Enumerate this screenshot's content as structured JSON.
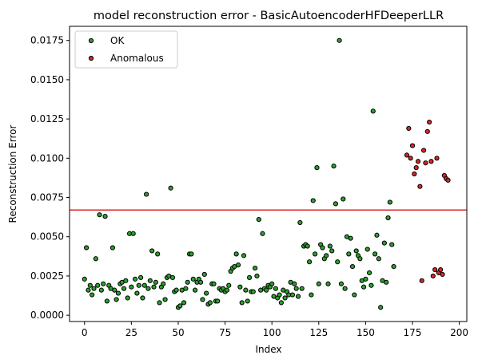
{
  "chart_data": {
    "type": "scatter",
    "title": "model reconstruction error - BasicAutoencoderHFDeeperLLR",
    "xlabel": "Index",
    "ylabel": "Reconstruction Error",
    "xlim": [
      -8,
      204
    ],
    "ylim": [
      -0.0004,
      0.0184
    ],
    "xticks": [
      0,
      25,
      50,
      75,
      100,
      125,
      150,
      175,
      200
    ],
    "yticks": [
      0.0,
      0.0025,
      0.005,
      0.0075,
      0.01,
      0.0125,
      0.015,
      0.0175
    ],
    "ytick_labels": [
      "0.0000",
      "0.0025",
      "0.0050",
      "0.0075",
      "0.0100",
      "0.0125",
      "0.0150",
      "0.0175"
    ],
    "grid": false,
    "legend_position": "top-left",
    "threshold": {
      "y": 0.0067,
      "color": "#d62728"
    },
    "series": [
      {
        "name": "OK",
        "color": "#2ca02c",
        "points": [
          [
            0,
            0.0023
          ],
          [
            1,
            0.0043
          ],
          [
            2,
            0.0016
          ],
          [
            3,
            0.0019
          ],
          [
            4,
            0.0013
          ],
          [
            5,
            0.0017
          ],
          [
            6,
            0.0036
          ],
          [
            7,
            0.0019
          ],
          [
            8,
            0.0064
          ],
          [
            9,
            0.0016
          ],
          [
            10,
            0.002
          ],
          [
            11,
            0.0063
          ],
          [
            12,
            0.0009
          ],
          [
            13,
            0.0019
          ],
          [
            14,
            0.0017
          ],
          [
            15,
            0.0043
          ],
          [
            16,
            0.0016
          ],
          [
            17,
            0.001
          ],
          [
            18,
            0.0014
          ],
          [
            19,
            0.002
          ],
          [
            20,
            0.0021
          ],
          [
            21,
            0.0017
          ],
          [
            22,
            0.0022
          ],
          [
            23,
            0.0011
          ],
          [
            24,
            0.0052
          ],
          [
            25,
            0.0018
          ],
          [
            26,
            0.0052
          ],
          [
            27,
            0.0023
          ],
          [
            28,
            0.0014
          ],
          [
            29,
            0.0019
          ],
          [
            30,
            0.0024
          ],
          [
            31,
            0.0011
          ],
          [
            32,
            0.0019
          ],
          [
            33,
            0.0077
          ],
          [
            34,
            0.0017
          ],
          [
            35,
            0.0022
          ],
          [
            36,
            0.0041
          ],
          [
            37,
            0.0018
          ],
          [
            38,
            0.0021
          ],
          [
            39,
            0.0039
          ],
          [
            40,
            0.0008
          ],
          [
            41,
            0.0018
          ],
          [
            42,
            0.002
          ],
          [
            43,
            0.001
          ],
          [
            44,
            0.0024
          ],
          [
            45,
            0.0025
          ],
          [
            46,
            0.0081
          ],
          [
            47,
            0.0024
          ],
          [
            48,
            0.0015
          ],
          [
            49,
            0.0016
          ],
          [
            50,
            0.0005
          ],
          [
            51,
            0.0006
          ],
          [
            52,
            0.0016
          ],
          [
            53,
            0.0008
          ],
          [
            54,
            0.0017
          ],
          [
            55,
            0.0021
          ],
          [
            56,
            0.0039
          ],
          [
            57,
            0.0039
          ],
          [
            58,
            0.0023
          ],
          [
            59,
            0.0016
          ],
          [
            60,
            0.0021
          ],
          [
            61,
            0.0023
          ],
          [
            62,
            0.0021
          ],
          [
            63,
            0.001
          ],
          [
            64,
            0.0026
          ],
          [
            65,
            0.0014
          ],
          [
            66,
            0.0007
          ],
          [
            67,
            0.0008
          ],
          [
            68,
            0.002
          ],
          [
            69,
            0.002
          ],
          [
            70,
            0.0009
          ],
          [
            71,
            0.0009
          ],
          [
            72,
            0.0017
          ],
          [
            73,
            0.0016
          ],
          [
            74,
            0.0017
          ],
          [
            75,
            0.0015
          ],
          [
            76,
            0.0016
          ],
          [
            77,
            0.0019
          ],
          [
            78,
            0.0028
          ],
          [
            79,
            0.003
          ],
          [
            80,
            0.0031
          ],
          [
            81,
            0.0039
          ],
          [
            82,
            0.0032
          ],
          [
            83,
            0.0018
          ],
          [
            84,
            0.0008
          ],
          [
            85,
            0.0038
          ],
          [
            86,
            0.0016
          ],
          [
            87,
            0.0009
          ],
          [
            88,
            0.0024
          ],
          [
            89,
            0.0015
          ],
          [
            90,
            0.0015
          ],
          [
            91,
            0.003
          ],
          [
            92,
            0.0025
          ],
          [
            93,
            0.0061
          ],
          [
            94,
            0.0016
          ],
          [
            95,
            0.0052
          ],
          [
            96,
            0.0017
          ],
          [
            97,
            0.0016
          ],
          [
            98,
            0.0019
          ],
          [
            99,
            0.0018
          ],
          [
            100,
            0.002
          ],
          [
            101,
            0.0012
          ],
          [
            102,
            0.0017
          ],
          [
            103,
            0.0011
          ],
          [
            104,
            0.0013
          ],
          [
            105,
            0.0008
          ],
          [
            106,
            0.0016
          ],
          [
            107,
            0.0011
          ],
          [
            108,
            0.0015
          ],
          [
            109,
            0.0013
          ],
          [
            110,
            0.0021
          ],
          [
            111,
            0.0013
          ],
          [
            112,
            0.002
          ],
          [
            113,
            0.0017
          ],
          [
            114,
            0.0012
          ],
          [
            115,
            0.0059
          ],
          [
            116,
            0.0017
          ],
          [
            117,
            0.0044
          ],
          [
            118,
            0.0045
          ],
          [
            119,
            0.0044
          ],
          [
            120,
            0.0034
          ],
          [
            121,
            0.0013
          ],
          [
            122,
            0.0073
          ],
          [
            123,
            0.0039
          ],
          [
            124,
            0.0094
          ],
          [
            125,
            0.002
          ],
          [
            126,
            0.0045
          ],
          [
            127,
            0.0043
          ],
          [
            128,
            0.0036
          ],
          [
            129,
            0.0038
          ],
          [
            130,
            0.002
          ],
          [
            131,
            0.0044
          ],
          [
            132,
            0.0041
          ],
          [
            133,
            0.0095
          ],
          [
            134,
            0.0071
          ],
          [
            135,
            0.0034
          ],
          [
            136,
            0.0175
          ],
          [
            137,
            0.002
          ],
          [
            138,
            0.0074
          ],
          [
            139,
            0.0017
          ],
          [
            140,
            0.005
          ],
          [
            141,
            0.0039
          ],
          [
            142,
            0.0049
          ],
          [
            143,
            0.0031
          ],
          [
            144,
            0.0013
          ],
          [
            145,
            0.0041
          ],
          [
            146,
            0.0038
          ],
          [
            147,
            0.0036
          ],
          [
            148,
            0.0022
          ],
          [
            149,
            0.0018
          ],
          [
            150,
            0.0023
          ],
          [
            151,
            0.0042
          ],
          [
            152,
            0.0027
          ],
          [
            153,
            0.0019
          ],
          [
            154,
            0.013
          ],
          [
            155,
            0.0039
          ],
          [
            156,
            0.0051
          ],
          [
            157,
            0.0036
          ],
          [
            158,
            0.0005
          ],
          [
            159,
            0.0022
          ],
          [
            160,
            0.0046
          ],
          [
            161,
            0.0021
          ],
          [
            162,
            0.0062
          ],
          [
            163,
            0.0072
          ],
          [
            164,
            0.0045
          ],
          [
            165,
            0.0031
          ]
        ]
      },
      {
        "name": "Anomalous",
        "color": "#d62728",
        "points": [
          [
            172,
            0.0102
          ],
          [
            173,
            0.0119
          ],
          [
            174,
            0.01
          ],
          [
            175,
            0.0108
          ],
          [
            176,
            0.009
          ],
          [
            177,
            0.0094
          ],
          [
            178,
            0.0098
          ],
          [
            179,
            0.0082
          ],
          [
            180,
            0.0022
          ],
          [
            181,
            0.0105
          ],
          [
            182,
            0.0097
          ],
          [
            183,
            0.0117
          ],
          [
            184,
            0.0123
          ],
          [
            185,
            0.0098
          ],
          [
            186,
            0.0025
          ],
          [
            187,
            0.0029
          ],
          [
            188,
            0.01
          ],
          [
            189,
            0.0027
          ],
          [
            190,
            0.0029
          ],
          [
            191,
            0.0026
          ],
          [
            192,
            0.0089
          ],
          [
            193,
            0.0087
          ],
          [
            194,
            0.0086
          ]
        ]
      }
    ]
  }
}
